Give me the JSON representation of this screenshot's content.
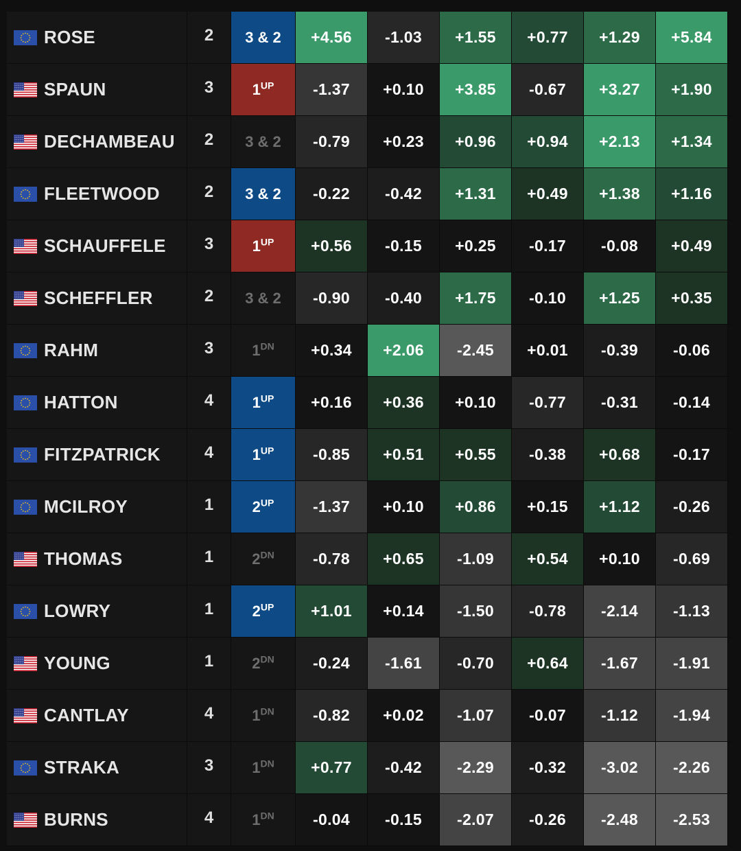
{
  "flag_icons": {
    "eu": "eu-flag-icon",
    "us": "us-flag-icon"
  },
  "colors": {
    "status_blue": "#0d4a86",
    "status_red": "#8e2a23",
    "positive_strong": "#3a9a6a",
    "negative_strong": "#5a5a5a",
    "neutral": "#141414"
  },
  "rows": [
    {
      "flag": "eu",
      "name": "ROSE",
      "round": "2",
      "status": {
        "main": "3 & 2",
        "suffix": "",
        "style": "blue"
      },
      "values": [
        "+4.56",
        "-1.03",
        "+1.55",
        "+0.77",
        "+1.29",
        "+5.84"
      ]
    },
    {
      "flag": "us",
      "name": "SPAUN",
      "round": "3",
      "status": {
        "main": "1",
        "suffix": "UP",
        "style": "red"
      },
      "values": [
        "-1.37",
        "+0.10",
        "+3.85",
        "-0.67",
        "+3.27",
        "+1.90"
      ]
    },
    {
      "flag": "us",
      "name": "DECHAMBEAU",
      "round": "2",
      "status": {
        "main": "3 & 2",
        "suffix": "",
        "style": "none"
      },
      "values": [
        "-0.79",
        "+0.23",
        "+0.96",
        "+0.94",
        "+2.13",
        "+1.34"
      ]
    },
    {
      "flag": "eu",
      "name": "FLEETWOOD",
      "round": "2",
      "status": {
        "main": "3 & 2",
        "suffix": "",
        "style": "blue"
      },
      "values": [
        "-0.22",
        "-0.42",
        "+1.31",
        "+0.49",
        "+1.38",
        "+1.16"
      ]
    },
    {
      "flag": "us",
      "name": "SCHAUFFELE",
      "round": "3",
      "status": {
        "main": "1",
        "suffix": "UP",
        "style": "red"
      },
      "values": [
        "+0.56",
        "-0.15",
        "+0.25",
        "-0.17",
        "-0.08",
        "+0.49"
      ]
    },
    {
      "flag": "us",
      "name": "SCHEFFLER",
      "round": "2",
      "status": {
        "main": "3 & 2",
        "suffix": "",
        "style": "none"
      },
      "values": [
        "-0.90",
        "-0.40",
        "+1.75",
        "-0.10",
        "+1.25",
        "+0.35"
      ]
    },
    {
      "flag": "eu",
      "name": "RAHM",
      "round": "3",
      "status": {
        "main": "1",
        "suffix": "DN",
        "style": "none"
      },
      "values": [
        "+0.34",
        "+2.06",
        "-2.45",
        "+0.01",
        "-0.39",
        "-0.06"
      ]
    },
    {
      "flag": "eu",
      "name": "HATTON",
      "round": "4",
      "status": {
        "main": "1",
        "suffix": "UP",
        "style": "blue"
      },
      "values": [
        "+0.16",
        "+0.36",
        "+0.10",
        "-0.77",
        "-0.31",
        "-0.14"
      ]
    },
    {
      "flag": "eu",
      "name": "FITZPATRICK",
      "round": "4",
      "status": {
        "main": "1",
        "suffix": "UP",
        "style": "blue"
      },
      "values": [
        "-0.85",
        "+0.51",
        "+0.55",
        "-0.38",
        "+0.68",
        "-0.17"
      ]
    },
    {
      "flag": "eu",
      "name": "MCILROY",
      "round": "1",
      "status": {
        "main": "2",
        "suffix": "UP",
        "style": "blue"
      },
      "values": [
        "-1.37",
        "+0.10",
        "+0.86",
        "+0.15",
        "+1.12",
        "-0.26"
      ]
    },
    {
      "flag": "us",
      "name": "THOMAS",
      "round": "1",
      "status": {
        "main": "2",
        "suffix": "DN",
        "style": "none"
      },
      "values": [
        "-0.78",
        "+0.65",
        "-1.09",
        "+0.54",
        "+0.10",
        "-0.69"
      ]
    },
    {
      "flag": "eu",
      "name": "LOWRY",
      "round": "1",
      "status": {
        "main": "2",
        "suffix": "UP",
        "style": "blue"
      },
      "values": [
        "+1.01",
        "+0.14",
        "-1.50",
        "-0.78",
        "-2.14",
        "-1.13"
      ]
    },
    {
      "flag": "us",
      "name": "YOUNG",
      "round": "1",
      "status": {
        "main": "2",
        "suffix": "DN",
        "style": "none"
      },
      "values": [
        "-0.24",
        "-1.61",
        "-0.70",
        "+0.64",
        "-1.67",
        "-1.91"
      ]
    },
    {
      "flag": "us",
      "name": "CANTLAY",
      "round": "4",
      "status": {
        "main": "1",
        "suffix": "DN",
        "style": "none"
      },
      "values": [
        "-0.82",
        "+0.02",
        "-1.07",
        "-0.07",
        "-1.12",
        "-1.94"
      ]
    },
    {
      "flag": "eu",
      "name": "STRAKA",
      "round": "3",
      "status": {
        "main": "1",
        "suffix": "DN",
        "style": "none"
      },
      "values": [
        "+0.77",
        "-0.42",
        "-2.29",
        "-0.32",
        "-3.02",
        "-2.26"
      ]
    },
    {
      "flag": "us",
      "name": "BURNS",
      "round": "4",
      "status": {
        "main": "1",
        "suffix": "DN",
        "style": "none"
      },
      "values": [
        "-0.04",
        "-0.15",
        "-2.07",
        "-0.26",
        "-2.48",
        "-2.53"
      ]
    }
  ]
}
